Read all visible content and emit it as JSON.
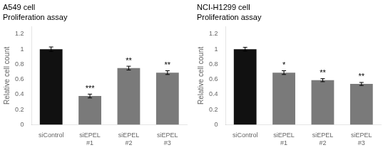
{
  "chart_data": [
    {
      "type": "bar",
      "title": "A549 cell",
      "subtitle": "Proliferation assay",
      "categories": [
        "siControl",
        "siEPEL\n#1",
        "siEPEL\n#2",
        "siEPEL\n#3"
      ],
      "values": [
        1.0,
        0.38,
        0.75,
        0.69
      ],
      "errors": [
        0.03,
        0.025,
        0.025,
        0.025
      ],
      "colors": [
        "#111111",
        "#7a7a7a",
        "#7a7a7a",
        "#7a7a7a"
      ],
      "annotations": [
        {
          "category": "siEPEL\n#1",
          "text": "***"
        },
        {
          "category": "siEPEL\n#2",
          "text": "**"
        },
        {
          "category": "siEPEL\n#3",
          "text": "**"
        }
      ],
      "ylabel": "Relative cell count",
      "ylim": [
        0,
        1.3
      ],
      "yticks": [
        0,
        0.2,
        0.4,
        0.6,
        0.8,
        1,
        1.2
      ],
      "grid": false
    },
    {
      "type": "bar",
      "title": "NCI-H1299 cell",
      "subtitle": "Proliferation assay",
      "categories": [
        "siControl",
        "siEPEL\n#1",
        "siEPEL\n#2",
        "siEPEL\n#3"
      ],
      "values": [
        1.0,
        0.69,
        0.59,
        0.54
      ],
      "errors": [
        0.025,
        0.025,
        0.02,
        0.02
      ],
      "colors": [
        "#111111",
        "#7a7a7a",
        "#7a7a7a",
        "#7a7a7a"
      ],
      "annotations": [
        {
          "category": "siEPEL\n#1",
          "text": "*"
        },
        {
          "category": "siEPEL\n#2",
          "text": "**"
        },
        {
          "category": "siEPEL\n#3",
          "text": "**"
        }
      ],
      "ylabel": "Relative cell count",
      "ylim": [
        0,
        1.3
      ],
      "yticks": [
        0,
        0.2,
        0.4,
        0.6,
        0.8,
        1,
        1.2
      ],
      "grid": false
    }
  ]
}
